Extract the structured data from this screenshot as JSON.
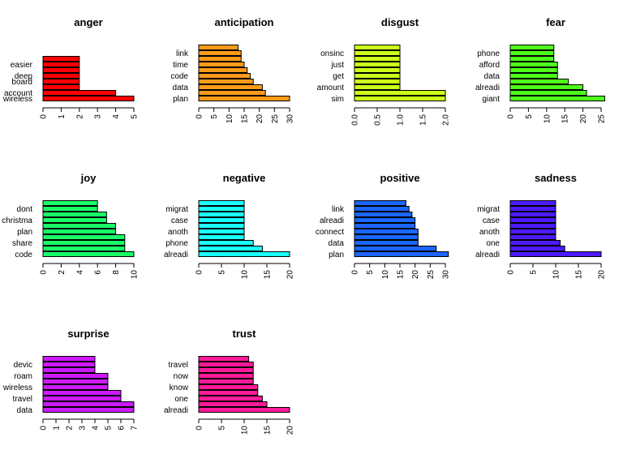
{
  "chart_data": [
    {
      "type": "bar",
      "orientation": "horizontal",
      "title": "anger",
      "color": "#ff0000",
      "categories": [
        "wireless",
        "account",
        "",
        "board",
        "deep",
        "",
        "easier",
        ""
      ],
      "values": [
        5,
        4,
        2,
        2,
        2,
        2,
        2,
        2
      ],
      "xlim": [
        0,
        5
      ],
      "ticks": [
        0,
        1,
        2,
        3,
        4,
        5
      ]
    },
    {
      "type": "bar",
      "orientation": "horizontal",
      "title": "anticipation",
      "color": "#ff9a1a",
      "categories": [
        "plan",
        "",
        "data",
        "",
        "code",
        "",
        "time",
        "",
        "link",
        ""
      ],
      "values": [
        30,
        22,
        21,
        18,
        17,
        16,
        15,
        14,
        14,
        13
      ],
      "xlim": [
        0,
        30
      ],
      "ticks": [
        0,
        5,
        10,
        15,
        20,
        25,
        30
      ]
    },
    {
      "type": "bar",
      "orientation": "horizontal",
      "title": "disgust",
      "color": "#ccff1a",
      "categories": [
        "sim",
        "",
        "amount",
        "",
        "get",
        "",
        "just",
        "",
        "onsinc",
        ""
      ],
      "values": [
        2,
        2,
        1,
        1,
        1,
        1,
        1,
        1,
        1,
        1
      ],
      "xlim": [
        0,
        2
      ],
      "ticks": [
        "0.0",
        "0.5",
        "1.0",
        "1.5",
        "2.0"
      ]
    },
    {
      "type": "bar",
      "orientation": "horizontal",
      "title": "fear",
      "color": "#4dff1a",
      "categories": [
        "giant",
        "",
        "alreadi",
        "",
        "data",
        "",
        "afford",
        "",
        "phone",
        ""
      ],
      "values": [
        26,
        21,
        20,
        16,
        13,
        13,
        13,
        12,
        12,
        12
      ],
      "xlim": [
        0,
        25
      ],
      "ticks": [
        0,
        5,
        10,
        15,
        20,
        25
      ]
    },
    {
      "type": "bar",
      "orientation": "horizontal",
      "title": "joy",
      "color": "#1aff66",
      "categories": [
        "code",
        "",
        "share",
        "",
        "plan",
        "",
        "christma",
        "",
        "dont",
        ""
      ],
      "values": [
        10,
        9,
        9,
        9,
        8,
        8,
        7,
        7,
        6,
        6
      ],
      "xlim": [
        0,
        10
      ],
      "ticks": [
        0,
        2,
        4,
        6,
        8,
        10
      ]
    },
    {
      "type": "bar",
      "orientation": "horizontal",
      "title": "negative",
      "color": "#1affff",
      "categories": [
        "alreadi",
        "",
        "phone",
        "",
        "anoth",
        "",
        "case",
        "",
        "migrat",
        ""
      ],
      "values": [
        20,
        14,
        12,
        10,
        10,
        10,
        10,
        10,
        10,
        10
      ],
      "xlim": [
        0,
        20
      ],
      "ticks": [
        0,
        5,
        10,
        15,
        20
      ]
    },
    {
      "type": "bar",
      "orientation": "horizontal",
      "title": "positive",
      "color": "#1a66ff",
      "categories": [
        "plan",
        "",
        "data",
        "",
        "connect",
        "",
        "alreadi",
        "",
        "link",
        ""
      ],
      "values": [
        31,
        27,
        21,
        21,
        21,
        20,
        20,
        19,
        18,
        17
      ],
      "xlim": [
        0,
        30
      ],
      "ticks": [
        0,
        5,
        10,
        15,
        20,
        25,
        30
      ]
    },
    {
      "type": "bar",
      "orientation": "horizontal",
      "title": "sadness",
      "color": "#4d1aff",
      "categories": [
        "alreadi",
        "",
        "one",
        "",
        "anoth",
        "",
        "case",
        "",
        "migrat",
        ""
      ],
      "values": [
        20,
        12,
        11,
        10,
        10,
        10,
        10,
        10,
        10,
        10
      ],
      "xlim": [
        0,
        20
      ],
      "ticks": [
        0,
        5,
        10,
        15,
        20
      ]
    },
    {
      "type": "bar",
      "orientation": "horizontal",
      "title": "surprise",
      "color": "#cc1aff",
      "categories": [
        "data",
        "",
        "travel",
        "",
        "wireless",
        "",
        "roam",
        "",
        "devic",
        ""
      ],
      "values": [
        7,
        7,
        6,
        6,
        5,
        5,
        5,
        4,
        4,
        4
      ],
      "xlim": [
        0,
        7
      ],
      "ticks": [
        0,
        1,
        2,
        3,
        4,
        5,
        6,
        7
      ]
    },
    {
      "type": "bar",
      "orientation": "horizontal",
      "title": "trust",
      "color": "#ff1a99",
      "categories": [
        "alreadi",
        "",
        "one",
        "",
        "know",
        "",
        "now",
        "",
        "travel",
        ""
      ],
      "values": [
        20,
        15,
        14,
        13,
        13,
        12,
        12,
        12,
        12,
        11
      ],
      "xlim": [
        0,
        20
      ],
      "ticks": [
        0,
        5,
        10,
        15,
        20
      ]
    }
  ]
}
